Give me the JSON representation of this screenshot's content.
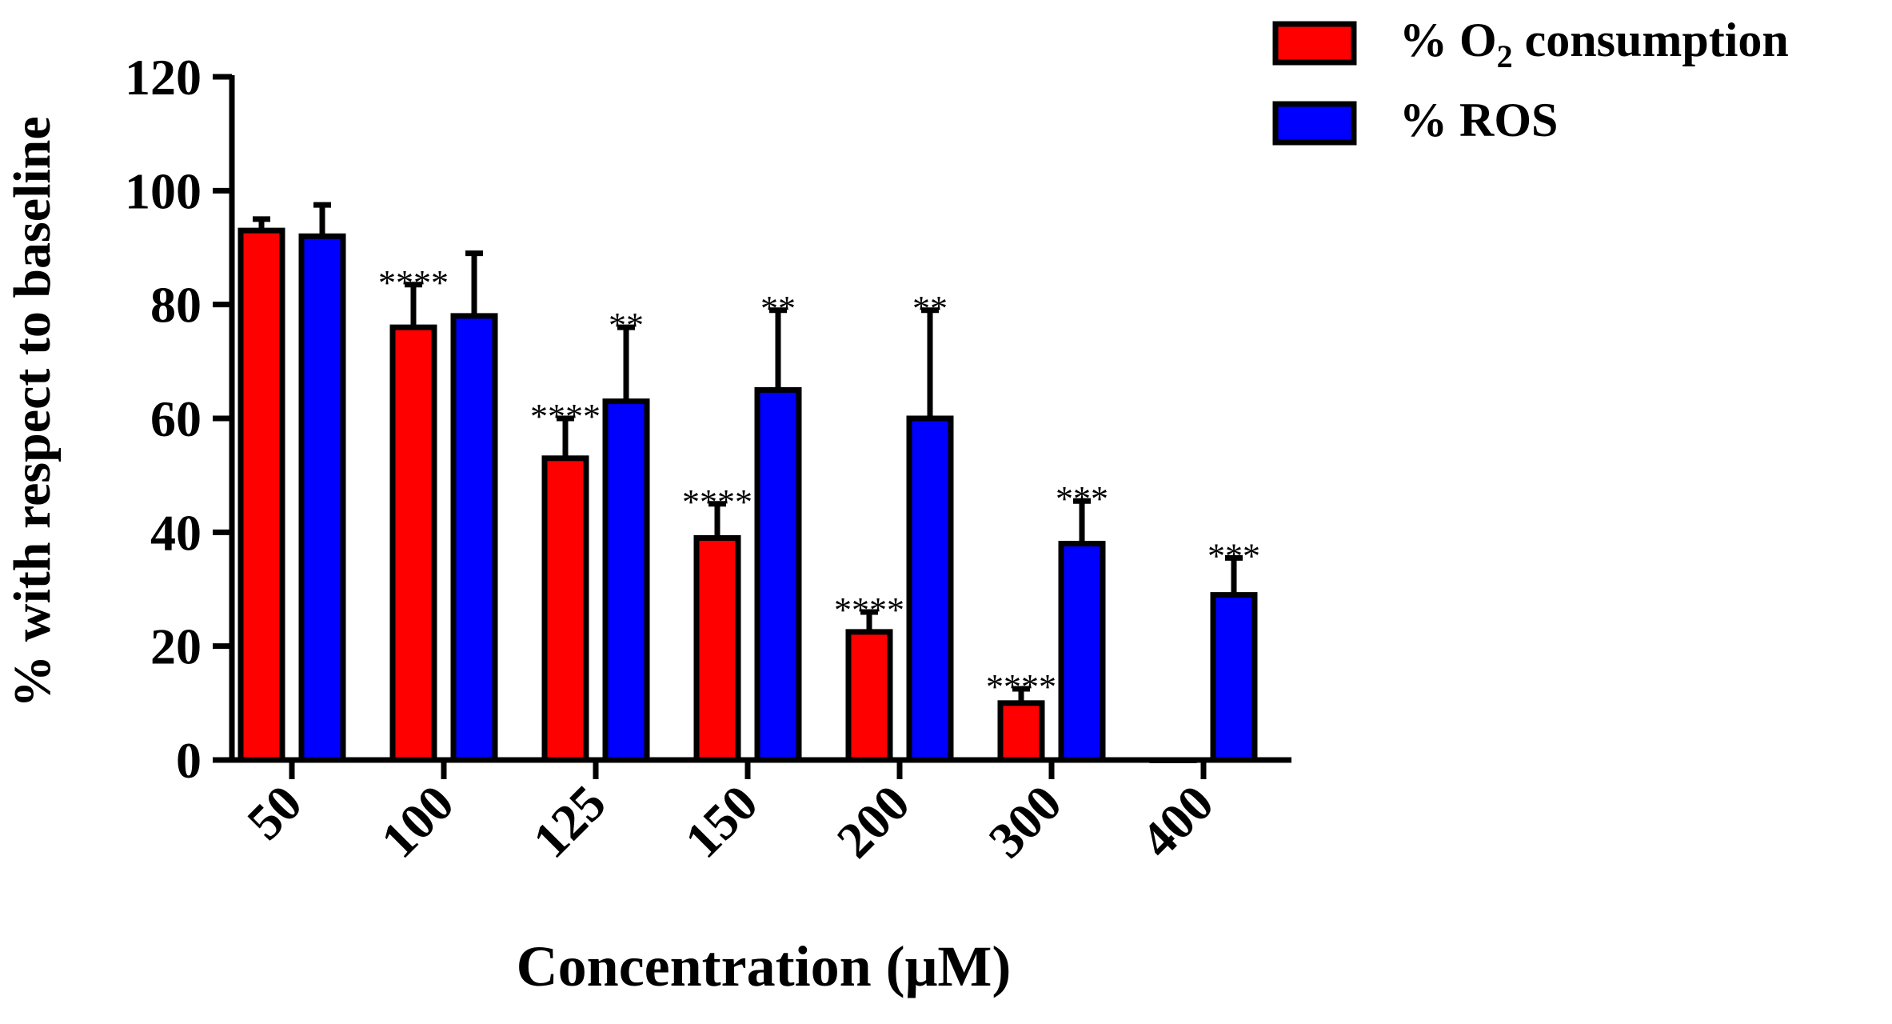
{
  "chart_data": {
    "type": "bar",
    "title": "",
    "xlabel": "Concentration (μM)",
    "ylabel": "% with respect to baseline",
    "ylim": [
      0,
      120
    ],
    "yticks": [
      0,
      20,
      40,
      60,
      80,
      100,
      120
    ],
    "categories": [
      "50",
      "100",
      "125",
      "150",
      "200",
      "300",
      "400"
    ],
    "legend_position": "top-right",
    "series": [
      {
        "name": "% O2 consumption",
        "label_prefix": "% O",
        "label_subscript": "2",
        "label_suffix": " consumption",
        "color": "#ff0000",
        "values": [
          93,
          76,
          53,
          39,
          22.5,
          10,
          0
        ],
        "errors": [
          2,
          7.5,
          7,
          6,
          3.5,
          2.5,
          0
        ],
        "significance": [
          "",
          "****",
          "****",
          "****",
          "****",
          "****",
          ""
        ]
      },
      {
        "name": "% ROS",
        "label_prefix": "% ROS",
        "label_subscript": "",
        "label_suffix": "",
        "color": "#0000ff",
        "values": [
          92,
          78,
          63,
          65,
          60,
          38,
          29
        ],
        "errors": [
          5.5,
          11,
          13,
          14,
          19,
          7.5,
          6.5
        ],
        "significance": [
          "",
          "",
          "**",
          "**",
          "**",
          "***",
          "***"
        ]
      }
    ]
  }
}
